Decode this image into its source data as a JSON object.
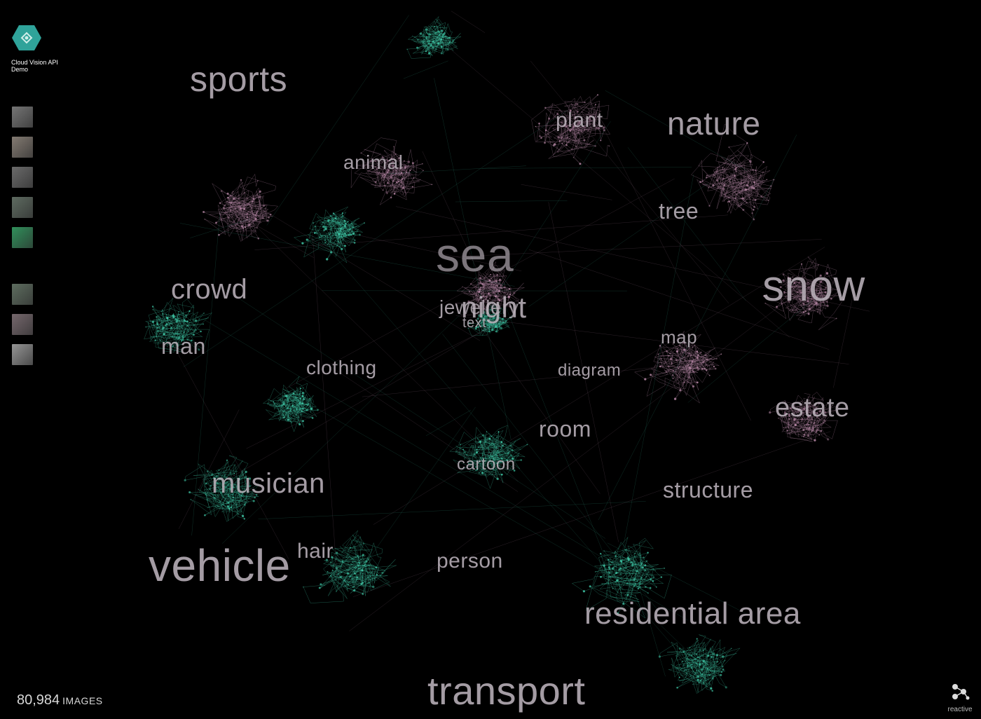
{
  "app": {
    "title": "Cloud Vision API Demo",
    "accent_color": "#2fa39a"
  },
  "thumbnails": [
    {
      "name": "thumb-1",
      "color": "#8a8a8a"
    },
    {
      "name": "thumb-2",
      "color": "#9a9086"
    },
    {
      "name": "thumb-3",
      "color": "#7d7d7d"
    },
    {
      "name": "thumb-4",
      "color": "#6f7e72"
    },
    {
      "name": "thumb-5",
      "color": "#39a96b"
    },
    {
      "name": "thumb-6",
      "color": "#6e8070"
    },
    {
      "name": "thumb-7",
      "color": "#8a7a80"
    },
    {
      "name": "thumb-8",
      "color": "#b0b0b0"
    }
  ],
  "labels": {
    "sports": "sports",
    "plant": "plant",
    "nature": "nature",
    "animal": "animal",
    "tree": "tree",
    "sea": "sea",
    "snow": "snow",
    "crowd": "crowd",
    "jewellery": "jewellery",
    "night": "night",
    "text": "text",
    "map": "map",
    "man": "man",
    "clothing": "clothing",
    "diagram": "diagram",
    "estate": "estate",
    "room": "room",
    "cartoon": "cartoon",
    "musician": "musician",
    "structure": "structure",
    "hair": "hair",
    "vehicle": "vehicle",
    "person": "person",
    "residential_area": "residential area",
    "transport": "transport"
  },
  "footer": {
    "count": "80,984",
    "unit": "IMAGES",
    "brand": "reactive"
  },
  "colors": {
    "pink_cluster": "#b98aa8",
    "teal_cluster": "#3fc7a6"
  }
}
